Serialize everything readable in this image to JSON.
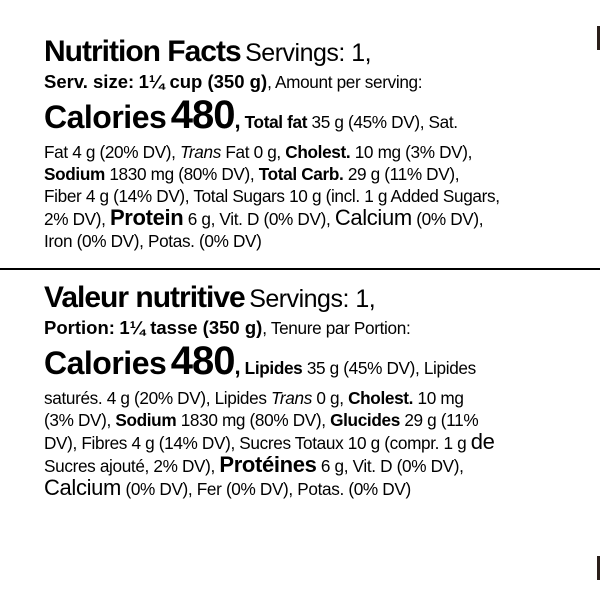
{
  "english": {
    "title": "Nutrition Facts",
    "servings": "Servings: 1,",
    "serving_size_label": "Serv. size:",
    "serving_size_value": "1¼ cup (350 g)",
    "amount_per_serving": ", Amount per serving:",
    "calories_label": "Calories",
    "calories_value": "480",
    "comma": ",",
    "total_fat_label": "Total fat",
    "total_fat_value": " 35 g (45% DV), Sat.",
    "sat_fat_value": "Fat 4 g (20% DV), ",
    "trans_label": "Trans",
    "trans_value": " Fat 0 g, ",
    "cholest_label": "Cholest.",
    "cholest_value": " 10 mg (3% DV),",
    "sodium_label": "Sodium",
    "sodium_value": " 1830 mg (80% DV), ",
    "carb_label": "Total Carb.",
    "carb_value": " 29 g (11% DV),",
    "fiber_sugars": "Fiber 4 g (14% DV), Total Sugars 10 g (incl. 1 g Added Sugars,",
    "added_dv": "2% DV), ",
    "protein_label": "Protein",
    "protein_value": " 6 g, Vit. D (0% DV), ",
    "calcium_label": "Calcium",
    "calcium_value": " (0% DV),",
    "iron_potas": "Iron (0% DV), Potas. (0% DV)"
  },
  "french": {
    "title": "Valeur nutritive",
    "servings": "Servings: 1,",
    "portion_label": "Portion:",
    "portion_value": "1¼ tasse (350 g)",
    "tenure": ", Tenure par Portion:",
    "calories_label": "Calories",
    "calories_value": "480",
    "comma": ",",
    "lipides_label": "Lipides",
    "lipides_value": " 35 g (45% DV), Lipides",
    "satures_value": "saturés. 4 g (20% DV), Lipides ",
    "trans_label": "Trans",
    "trans_value": " 0 g, ",
    "cholest_label": "Cholest.",
    "cholest_value": " 10 mg",
    "cholest_dv": "(3% DV), ",
    "sodium_label": "Sodium",
    "sodium_value": " 1830 mg (80% DV), ",
    "glucides_label": "Glucides",
    "glucides_value": " 29 g (11%",
    "fibres_sucres": "DV), Fibres 4 g (14% DV), Sucres Totaux 10 g (compr. 1 g ",
    "de_word": "de",
    "sucres_ajoute": "Sucres ajouté, 2% DV), ",
    "proteines_label": "Protéines",
    "proteines_value": " 6 g, Vit. D (0% DV),",
    "calcium_label": "Calcium",
    "calcium_rest": " (0% DV), Fer (0% DV), Potas. (0% DV)"
  }
}
